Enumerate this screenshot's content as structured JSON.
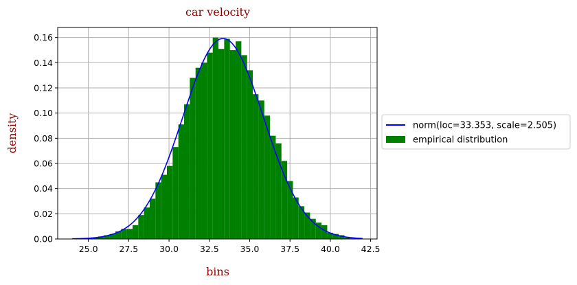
{
  "chart_data": {
    "type": "bar",
    "title": "car velocity",
    "xlabel": "bins",
    "ylabel": "density",
    "xlim": [
      23.1,
      42.9
    ],
    "ylim": [
      0,
      0.168
    ],
    "grid": true,
    "legend_placement": "right",
    "x_ticks": [
      "25.0",
      "27.5",
      "30.0",
      "32.5",
      "35.0",
      "37.5",
      "40.0",
      "42.5"
    ],
    "y_ticks": [
      "0.00",
      "0.02",
      "0.04",
      "0.06",
      "0.08",
      "0.10",
      "0.12",
      "0.14",
      "0.16"
    ],
    "colors": {
      "histogram": "#008000",
      "curve": "#0000ff",
      "title": "#8b0000",
      "grid": "#b0b0b0"
    },
    "series": [
      {
        "name": "norm(loc=33.353, scale=2.505)",
        "type": "line",
        "loc": 33.353,
        "scale": 2.505,
        "x_range": [
          24.0,
          42.0
        ]
      },
      {
        "name": "empirical distribution",
        "type": "histogram",
        "bin_width": 0.355,
        "bins_start": [
          24.9,
          25.255,
          25.61,
          25.965,
          26.32,
          26.675,
          27.03,
          27.385,
          27.74,
          28.095,
          28.45,
          28.805,
          29.16,
          29.515,
          29.87,
          30.225,
          30.58,
          30.935,
          31.29,
          31.645,
          32.0,
          32.355,
          32.71,
          33.065,
          33.42,
          33.775,
          34.13,
          34.485,
          34.84,
          35.195,
          35.55,
          35.905,
          36.26,
          36.615,
          36.97,
          37.325,
          37.68,
          38.035,
          38.39,
          38.745,
          39.1,
          39.455,
          39.81,
          40.165,
          40.52,
          40.875,
          41.23
        ],
        "values": [
          0.0005,
          0.001,
          0.002,
          0.003,
          0.004,
          0.006,
          0.008,
          0.008,
          0.011,
          0.019,
          0.025,
          0.032,
          0.045,
          0.051,
          0.058,
          0.073,
          0.091,
          0.107,
          0.128,
          0.136,
          0.14,
          0.148,
          0.16,
          0.151,
          0.159,
          0.15,
          0.157,
          0.146,
          0.134,
          0.115,
          0.11,
          0.098,
          0.082,
          0.076,
          0.062,
          0.046,
          0.033,
          0.026,
          0.021,
          0.016,
          0.013,
          0.011,
          0.005,
          0.004,
          0.003,
          0.001,
          0.0005
        ]
      }
    ]
  }
}
